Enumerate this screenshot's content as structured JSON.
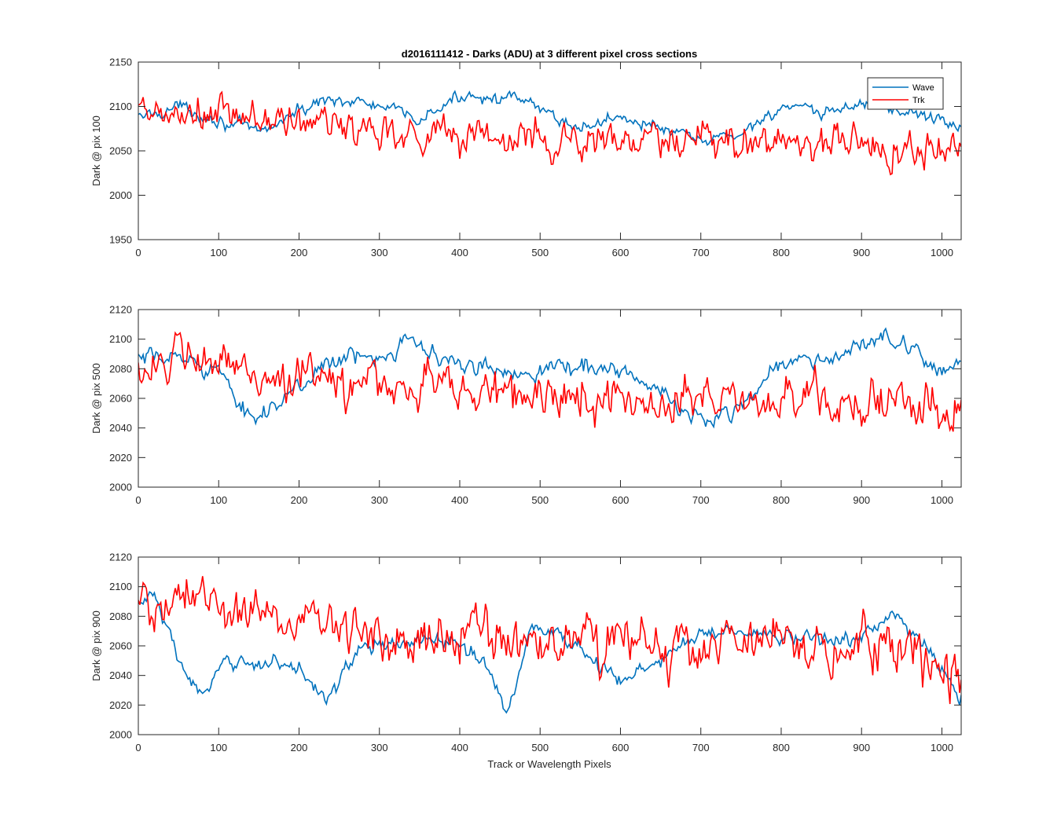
{
  "chart_data": [
    {
      "type": "line",
      "title": "d2016111412 - Darks (ADU) at 3 different pixel cross sections",
      "ylabel": "Dark @ pix 100",
      "xlabel": "",
      "xlim": [
        0,
        1024
      ],
      "ylim": [
        1950,
        2150
      ],
      "xticks": [
        0,
        100,
        200,
        300,
        400,
        500,
        600,
        700,
        800,
        900,
        1000
      ],
      "yticks": [
        1950,
        2000,
        2050,
        2100,
        2150
      ],
      "legend": {
        "position": "top-right",
        "entries": [
          "Wave",
          "Trk"
        ]
      },
      "series": [
        {
          "name": "Wave",
          "color": "#0072BD",
          "anchors_x": [
            0,
            50,
            100,
            150,
            200,
            240,
            300,
            350,
            410,
            480,
            550,
            600,
            650,
            700,
            750,
            800,
            850,
            900,
            950,
            1000,
            1024
          ],
          "anchors_y": [
            2087,
            2100,
            2085,
            2070,
            2095,
            2110,
            2100,
            2085,
            2115,
            2105,
            2075,
            2090,
            2075,
            2060,
            2070,
            2100,
            2090,
            2105,
            2095,
            2085,
            2075
          ],
          "noise": 7
        },
        {
          "name": "Trk",
          "color": "#FF0000",
          "anchors_x": [
            0,
            100,
            200,
            300,
            400,
            500,
            600,
            700,
            800,
            900,
            1000,
            1024
          ],
          "anchors_y": [
            2088,
            2088,
            2082,
            2075,
            2068,
            2062,
            2060,
            2058,
            2062,
            2058,
            2048,
            2050
          ],
          "noise": 22
        }
      ]
    },
    {
      "type": "line",
      "title": "",
      "ylabel": "Dark @ pix 500",
      "xlabel": "",
      "xlim": [
        0,
        1024
      ],
      "ylim": [
        2000,
        2120
      ],
      "xticks": [
        0,
        100,
        200,
        300,
        400,
        500,
        600,
        700,
        800,
        900,
        1000
      ],
      "yticks": [
        2000,
        2020,
        2040,
        2060,
        2080,
        2100,
        2120
      ],
      "series": [
        {
          "name": "Wave",
          "color": "#0072BD",
          "anchors_x": [
            0,
            50,
            100,
            120,
            150,
            200,
            230,
            300,
            340,
            360,
            400,
            450,
            500,
            550,
            600,
            650,
            700,
            750,
            800,
            850,
            900,
            930,
            960,
            1000,
            1024
          ],
          "anchors_y": [
            2085,
            2088,
            2080,
            2055,
            2050,
            2065,
            2085,
            2088,
            2105,
            2090,
            2082,
            2078,
            2080,
            2082,
            2080,
            2062,
            2045,
            2055,
            2085,
            2085,
            2095,
            2102,
            2090,
            2080,
            2088
          ],
          "noise": 6
        },
        {
          "name": "Trk",
          "color": "#FF0000",
          "anchors_x": [
            0,
            100,
            200,
            300,
            400,
            500,
            600,
            700,
            800,
            900,
            1000,
            1024
          ],
          "anchors_y": [
            2085,
            2082,
            2072,
            2070,
            2068,
            2060,
            2060,
            2058,
            2060,
            2058,
            2050,
            2052
          ],
          "noise": 15
        }
      ]
    },
    {
      "type": "line",
      "title": "",
      "ylabel": "Dark @ pix 900",
      "xlabel": "Track or Wavelength Pixels",
      "xlim": [
        0,
        1024
      ],
      "ylim": [
        2000,
        2120
      ],
      "xticks": [
        0,
        100,
        200,
        300,
        400,
        500,
        600,
        700,
        800,
        900,
        1000
      ],
      "yticks": [
        2000,
        2020,
        2040,
        2060,
        2080,
        2100,
        2120
      ],
      "series": [
        {
          "name": "Wave",
          "color": "#0072BD",
          "anchors_x": [
            0,
            20,
            50,
            80,
            110,
            150,
            200,
            235,
            280,
            320,
            360,
            400,
            430,
            460,
            490,
            520,
            560,
            600,
            650,
            700,
            750,
            800,
            850,
            900,
            940,
            980,
            1024
          ],
          "anchors_y": [
            2088,
            2095,
            2050,
            2025,
            2048,
            2050,
            2045,
            2025,
            2060,
            2060,
            2065,
            2060,
            2050,
            2015,
            2075,
            2068,
            2055,
            2035,
            2050,
            2070,
            2070,
            2065,
            2065,
            2065,
            2080,
            2060,
            2025
          ],
          "noise": 5
        },
        {
          "name": "Trk",
          "color": "#FF0000",
          "anchors_x": [
            0,
            100,
            200,
            300,
            400,
            500,
            600,
            700,
            800,
            900,
            1000,
            1024
          ],
          "anchors_y": [
            2088,
            2088,
            2078,
            2070,
            2068,
            2062,
            2060,
            2060,
            2060,
            2058,
            2050,
            2045
          ],
          "noise": 17
        }
      ]
    }
  ]
}
